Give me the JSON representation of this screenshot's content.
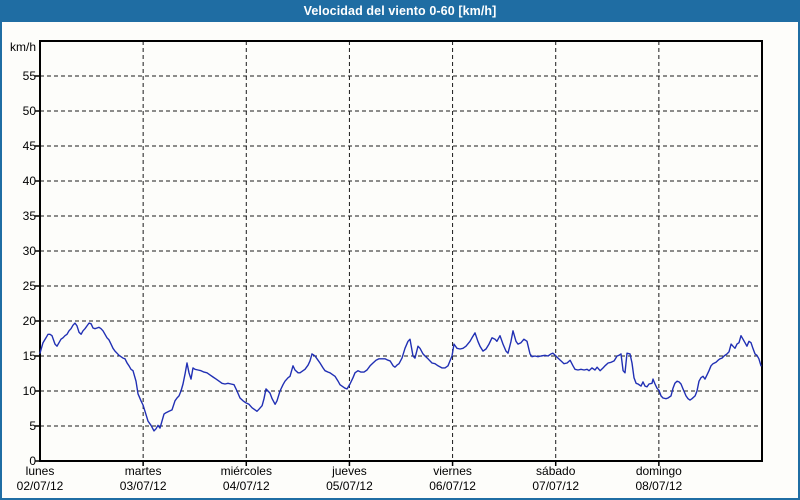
{
  "window": {
    "title": "Velocidad del viento 0-60 [km/h]"
  },
  "colors": {
    "title_bar_bg": "#1f6da3",
    "page_border": "#1f6da3",
    "title_text": "#ffffff",
    "plot_bg": "#fdfdfa",
    "grid": "#1a1a1a",
    "frame": "#000000",
    "line": "#2130b4",
    "label_text": "#000000"
  },
  "chart_data": {
    "type": "line",
    "title": "Velocidad del viento 0-60 [km/h]",
    "ylabel": "km/h",
    "xlabel": "",
    "ylim": [
      0,
      60
    ],
    "yticks": [
      0,
      5,
      10,
      15,
      20,
      25,
      30,
      35,
      40,
      45,
      50,
      55
    ],
    "grid": "dashed",
    "legend": "none",
    "x_range_days": [
      0,
      7
    ],
    "x_days": [
      {
        "name": "lunes",
        "date": "02/07/12"
      },
      {
        "name": "martes",
        "date": "03/07/12"
      },
      {
        "name": "miércoles",
        "date": "04/07/12"
      },
      {
        "name": "jueves",
        "date": "05/07/12"
      },
      {
        "name": "viernes",
        "date": "06/07/12"
      },
      {
        "name": "sábado",
        "date": "07/07/12"
      },
      {
        "name": "domingo",
        "date": "08/07/12"
      }
    ],
    "series": [
      {
        "name": "Velocidad del viento",
        "color": "#2130b4",
        "x_unit": "days_since_lunes_00h",
        "y_unit": "km/h",
        "points": [
          [
            0.0,
            15.4
          ],
          [
            0.029,
            16.9
          ],
          [
            0.058,
            17.6
          ],
          [
            0.078,
            18.1
          ],
          [
            0.097,
            18.1
          ],
          [
            0.116,
            17.9
          ],
          [
            0.145,
            16.7
          ],
          [
            0.165,
            16.4
          ],
          [
            0.184,
            16.9
          ],
          [
            0.204,
            17.4
          ],
          [
            0.223,
            17.6
          ],
          [
            0.242,
            17.9
          ],
          [
            0.262,
            18.1
          ],
          [
            0.281,
            18.6
          ],
          [
            0.301,
            18.9
          ],
          [
            0.32,
            19.4
          ],
          [
            0.339,
            19.7
          ],
          [
            0.359,
            19.3
          ],
          [
            0.378,
            18.4
          ],
          [
            0.398,
            18.1
          ],
          [
            0.417,
            18.6
          ],
          [
            0.436,
            18.9
          ],
          [
            0.456,
            19.3
          ],
          [
            0.475,
            19.7
          ],
          [
            0.495,
            19.6
          ],
          [
            0.514,
            19.0
          ],
          [
            0.533,
            18.9
          ],
          [
            0.553,
            19.0
          ],
          [
            0.572,
            19.1
          ],
          [
            0.591,
            18.9
          ],
          [
            0.611,
            18.6
          ],
          [
            0.63,
            18.1
          ],
          [
            0.65,
            17.6
          ],
          [
            0.669,
            17.3
          ],
          [
            0.688,
            16.7
          ],
          [
            0.708,
            16.1
          ],
          [
            0.727,
            15.7
          ],
          [
            0.747,
            15.4
          ],
          [
            0.766,
            15.1
          ],
          [
            0.785,
            14.9
          ],
          [
            0.805,
            14.7
          ],
          [
            0.824,
            14.6
          ],
          [
            0.844,
            14.0
          ],
          [
            0.863,
            13.6
          ],
          [
            0.882,
            13.1
          ],
          [
            0.902,
            12.9
          ],
          [
            0.931,
            11.4
          ],
          [
            0.95,
            9.6
          ],
          [
            0.979,
            8.6
          ],
          [
            0.999,
            8.0
          ],
          [
            1.018,
            7.1
          ],
          [
            1.047,
            5.7
          ],
          [
            1.076,
            5.1
          ],
          [
            1.105,
            4.3
          ],
          [
            1.125,
            4.6
          ],
          [
            1.144,
            5.1
          ],
          [
            1.163,
            4.7
          ],
          [
            1.183,
            5.7
          ],
          [
            1.202,
            6.7
          ],
          [
            1.222,
            6.9
          ],
          [
            1.251,
            7.1
          ],
          [
            1.28,
            7.3
          ],
          [
            1.309,
            8.6
          ],
          [
            1.328,
            9.0
          ],
          [
            1.348,
            9.3
          ],
          [
            1.367,
            10.0
          ],
          [
            1.386,
            11.0
          ],
          [
            1.406,
            12.4
          ],
          [
            1.425,
            14.0
          ],
          [
            1.445,
            12.6
          ],
          [
            1.464,
            11.7
          ],
          [
            1.483,
            13.3
          ],
          [
            1.503,
            13.1
          ],
          [
            1.532,
            13.0
          ],
          [
            1.561,
            12.9
          ],
          [
            1.59,
            12.7
          ],
          [
            1.619,
            12.6
          ],
          [
            1.648,
            12.3
          ],
          [
            1.677,
            12.0
          ],
          [
            1.707,
            11.7
          ],
          [
            1.736,
            11.4
          ],
          [
            1.765,
            11.1
          ],
          [
            1.794,
            11.0
          ],
          [
            1.823,
            11.1
          ],
          [
            1.852,
            11.0
          ],
          [
            1.881,
            10.9
          ],
          [
            1.91,
            10.0
          ],
          [
            1.939,
            9.0
          ],
          [
            1.968,
            8.6
          ],
          [
            1.997,
            8.3
          ],
          [
            2.026,
            8.1
          ],
          [
            2.056,
            7.6
          ],
          [
            2.085,
            7.3
          ],
          [
            2.104,
            7.1
          ],
          [
            2.123,
            7.4
          ],
          [
            2.153,
            7.9
          ],
          [
            2.172,
            8.9
          ],
          [
            2.191,
            10.3
          ],
          [
            2.211,
            10.0
          ],
          [
            2.23,
            9.7
          ],
          [
            2.25,
            8.9
          ],
          [
            2.279,
            8.1
          ],
          [
            2.298,
            8.6
          ],
          [
            2.327,
            10.0
          ],
          [
            2.356,
            10.9
          ],
          [
            2.375,
            11.4
          ],
          [
            2.405,
            11.9
          ],
          [
            2.424,
            12.1
          ],
          [
            2.453,
            13.6
          ],
          [
            2.472,
            13.0
          ],
          [
            2.502,
            12.6
          ],
          [
            2.521,
            12.6
          ],
          [
            2.55,
            12.9
          ],
          [
            2.569,
            13.1
          ],
          [
            2.599,
            13.7
          ],
          [
            2.618,
            14.3
          ],
          [
            2.637,
            15.3
          ],
          [
            2.666,
            15.0
          ],
          [
            2.695,
            14.4
          ],
          [
            2.715,
            14.0
          ],
          [
            2.744,
            13.3
          ],
          [
            2.763,
            12.9
          ],
          [
            2.793,
            12.7
          ],
          [
            2.812,
            12.6
          ],
          [
            2.841,
            12.3
          ],
          [
            2.86,
            12.1
          ],
          [
            2.89,
            11.4
          ],
          [
            2.909,
            10.9
          ],
          [
            2.938,
            10.6
          ],
          [
            2.957,
            10.4
          ],
          [
            2.977,
            10.3
          ],
          [
            3.006,
            11.0
          ],
          [
            3.035,
            11.9
          ],
          [
            3.054,
            12.6
          ],
          [
            3.083,
            12.9
          ],
          [
            3.112,
            12.7
          ],
          [
            3.141,
            12.7
          ],
          [
            3.17,
            13.0
          ],
          [
            3.2,
            13.6
          ],
          [
            3.229,
            14.0
          ],
          [
            3.258,
            14.4
          ],
          [
            3.287,
            14.6
          ],
          [
            3.316,
            14.6
          ],
          [
            3.345,
            14.6
          ],
          [
            3.374,
            14.4
          ],
          [
            3.394,
            14.3
          ],
          [
            3.423,
            13.6
          ],
          [
            3.442,
            13.4
          ],
          [
            3.461,
            13.7
          ],
          [
            3.481,
            13.9
          ],
          [
            3.51,
            14.7
          ],
          [
            3.539,
            16.1
          ],
          [
            3.568,
            17.1
          ],
          [
            3.587,
            17.4
          ],
          [
            3.616,
            15.0
          ],
          [
            3.636,
            14.7
          ],
          [
            3.665,
            16.4
          ],
          [
            3.684,
            16.1
          ],
          [
            3.713,
            15.3
          ],
          [
            3.733,
            15.0
          ],
          [
            3.762,
            14.6
          ],
          [
            3.801,
            14.0
          ],
          [
            3.83,
            13.9
          ],
          [
            3.859,
            13.6
          ],
          [
            3.897,
            13.3
          ],
          [
            3.927,
            13.3
          ],
          [
            3.956,
            13.6
          ],
          [
            3.975,
            14.3
          ],
          [
            3.994,
            15.0
          ],
          [
            4.014,
            16.7
          ],
          [
            4.043,
            16.1
          ],
          [
            4.072,
            16.0
          ],
          [
            4.101,
            16.1
          ],
          [
            4.13,
            16.4
          ],
          [
            4.169,
            17.1
          ],
          [
            4.188,
            17.6
          ],
          [
            4.217,
            18.3
          ],
          [
            4.246,
            17.1
          ],
          [
            4.266,
            16.4
          ],
          [
            4.295,
            15.7
          ],
          [
            4.324,
            16.0
          ],
          [
            4.353,
            16.7
          ],
          [
            4.382,
            17.6
          ],
          [
            4.411,
            17.4
          ],
          [
            4.43,
            17.1
          ],
          [
            4.46,
            17.9
          ],
          [
            4.489,
            16.7
          ],
          [
            4.518,
            15.7
          ],
          [
            4.537,
            15.4
          ],
          [
            4.566,
            17.1
          ],
          [
            4.586,
            18.6
          ],
          [
            4.615,
            17.1
          ],
          [
            4.634,
            16.7
          ],
          [
            4.663,
            16.9
          ],
          [
            4.692,
            17.4
          ],
          [
            4.722,
            17.1
          ],
          [
            4.751,
            15.3
          ],
          [
            4.77,
            14.9
          ],
          [
            4.799,
            15.0
          ],
          [
            4.828,
            14.9
          ],
          [
            4.857,
            15.0
          ],
          [
            4.896,
            15.1
          ],
          [
            4.925,
            15.0
          ],
          [
            4.954,
            15.3
          ],
          [
            4.974,
            15.4
          ],
          [
            5.003,
            15.0
          ],
          [
            5.022,
            14.7
          ],
          [
            5.051,
            14.3
          ],
          [
            5.08,
            13.9
          ],
          [
            5.11,
            14.0
          ],
          [
            5.139,
            14.4
          ],
          [
            5.168,
            13.6
          ],
          [
            5.187,
            13.1
          ],
          [
            5.216,
            13.0
          ],
          [
            5.245,
            13.1
          ],
          [
            5.275,
            13.0
          ],
          [
            5.304,
            13.1
          ],
          [
            5.323,
            12.9
          ],
          [
            5.352,
            13.3
          ],
          [
            5.381,
            13.0
          ],
          [
            5.401,
            13.4
          ],
          [
            5.43,
            12.9
          ],
          [
            5.459,
            13.3
          ],
          [
            5.478,
            13.6
          ],
          [
            5.508,
            14.0
          ],
          [
            5.537,
            14.1
          ],
          [
            5.566,
            14.3
          ],
          [
            5.595,
            15.0
          ],
          [
            5.614,
            15.1
          ],
          [
            5.633,
            15.3
          ],
          [
            5.653,
            12.9
          ],
          [
            5.672,
            12.6
          ],
          [
            5.691,
            15.4
          ],
          [
            5.72,
            15.3
          ],
          [
            5.74,
            14.0
          ],
          [
            5.759,
            11.9
          ],
          [
            5.779,
            11.1
          ],
          [
            5.798,
            11.0
          ],
          [
            5.827,
            10.7
          ],
          [
            5.846,
            11.3
          ],
          [
            5.866,
            10.7
          ],
          [
            5.885,
            10.6
          ],
          [
            5.904,
            11.0
          ],
          [
            5.934,
            11.1
          ],
          [
            5.943,
            11.7
          ],
          [
            5.963,
            11.0
          ],
          [
            5.982,
            10.4
          ],
          [
            6.001,
            10.1
          ],
          [
            6.021,
            9.3
          ],
          [
            6.04,
            9.0
          ],
          [
            6.069,
            8.9
          ],
          [
            6.089,
            9.0
          ],
          [
            6.118,
            9.3
          ],
          [
            6.137,
            10.4
          ],
          [
            6.156,
            11.1
          ],
          [
            6.176,
            11.4
          ],
          [
            6.195,
            11.3
          ],
          [
            6.215,
            11.0
          ],
          [
            6.234,
            10.3
          ],
          [
            6.263,
            9.3
          ],
          [
            6.283,
            8.9
          ],
          [
            6.302,
            8.7
          ],
          [
            6.321,
            8.9
          ],
          [
            6.351,
            9.3
          ],
          [
            6.37,
            10.0
          ],
          [
            6.389,
            11.4
          ],
          [
            6.409,
            11.9
          ],
          [
            6.428,
            12.1
          ],
          [
            6.447,
            11.7
          ],
          [
            6.467,
            12.3
          ],
          [
            6.486,
            12.9
          ],
          [
            6.506,
            13.6
          ],
          [
            6.525,
            13.9
          ],
          [
            6.554,
            14.1
          ],
          [
            6.574,
            14.4
          ],
          [
            6.593,
            14.6
          ],
          [
            6.612,
            14.7
          ],
          [
            6.632,
            15.0
          ],
          [
            6.661,
            15.3
          ],
          [
            6.68,
            15.6
          ],
          [
            6.7,
            16.7
          ],
          [
            6.719,
            16.4
          ],
          [
            6.738,
            16.1
          ],
          [
            6.758,
            16.7
          ],
          [
            6.777,
            16.9
          ],
          [
            6.796,
            17.9
          ],
          [
            6.816,
            17.4
          ],
          [
            6.835,
            16.9
          ],
          [
            6.854,
            16.4
          ],
          [
            6.874,
            17.1
          ],
          [
            6.893,
            16.9
          ],
          [
            6.912,
            16.1
          ],
          [
            6.932,
            15.3
          ],
          [
            6.951,
            15.1
          ],
          [
            6.97,
            14.6
          ],
          [
            6.99,
            13.6
          ]
        ]
      }
    ]
  }
}
